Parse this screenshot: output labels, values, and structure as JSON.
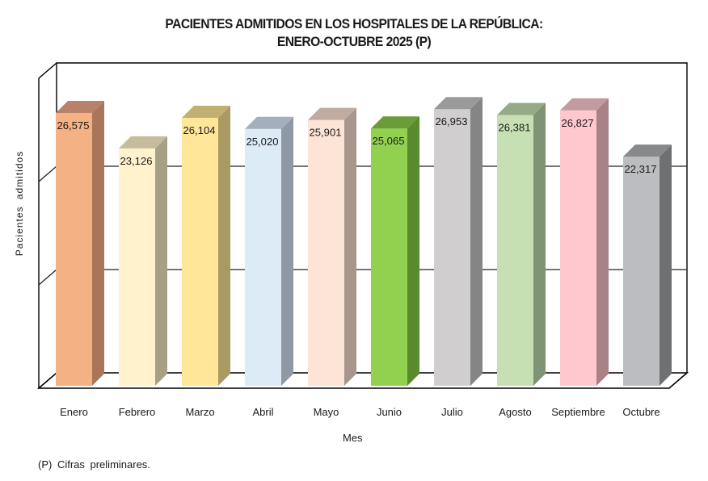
{
  "chart_data": {
    "type": "bar",
    "style": "3d-column",
    "title": "PACIENTES ADMITIDOS EN LOS HOSPITALES DE LA REPÚBLICA:",
    "subtitle": "ENERO-OCTUBRE 2025 (P)",
    "xlabel": "Mes",
    "ylabel": "Pacientes  admitidos",
    "ylim": [
      0,
      30000
    ],
    "yticks_shown": false,
    "grid": true,
    "grid_values": [
      10000,
      20000
    ],
    "legend": "none",
    "categories": [
      "Enero",
      "Febrero",
      "Marzo",
      "Abril",
      "Mayo",
      "Junio",
      "Julio",
      "Agosto",
      "Septiembre",
      "Octubre"
    ],
    "values": [
      26575,
      23126,
      26104,
      25020,
      25901,
      25065,
      26953,
      26381,
      26827,
      22317
    ],
    "data_labels": [
      "26,575",
      "23,126",
      "26,104",
      "25,020",
      "25,901",
      "25,065",
      "26,953",
      "26,381",
      "26,827",
      "22,317"
    ],
    "bar_colors": [
      {
        "front": "#f4b183",
        "side": "#a9765a",
        "top": "#b8826a"
      },
      {
        "front": "#fff2cc",
        "side": "#a8a086",
        "top": "#c4bc9c"
      },
      {
        "front": "#ffe699",
        "side": "#a99a62",
        "top": "#c2b072"
      },
      {
        "front": "#ddebf7",
        "side": "#8e99a3",
        "top": "#a3afba"
      },
      {
        "front": "#fce4d6",
        "side": "#a8968c",
        "top": "#bfaba0"
      },
      {
        "front": "#92d050",
        "side": "#5a8a2e",
        "top": "#6a9c38"
      },
      {
        "front": "#d0cece",
        "side": "#858585",
        "top": "#9a9a9a"
      },
      {
        "front": "#c6e0b4",
        "side": "#7e9474",
        "top": "#94aa88"
      },
      {
        "front": "#ffc7ce",
        "side": "#a88286",
        "top": "#c09ca0"
      },
      {
        "front": "#bcbdc0",
        "side": "#6f7072",
        "top": "#88898b"
      }
    ],
    "footnote": "(P) Cifras  preliminares."
  }
}
